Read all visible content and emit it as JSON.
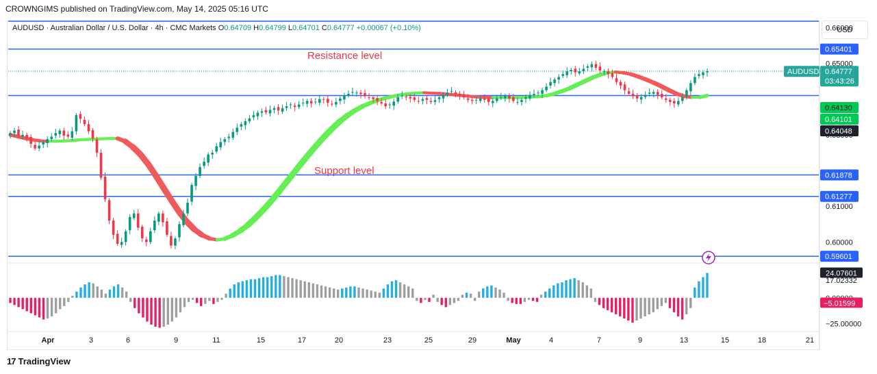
{
  "header": {
    "published": "CROWNGIMS published on TradingView.com, May 14, 2025 05:16 UTC",
    "symbol": "AUDUSD · Australian Dollar / U.S. Dollar · 4h · CMC Markets",
    "o_label": "O",
    "o_value": "0.64709",
    "h_label": "H",
    "h_value": "0.64799",
    "l_label": "L",
    "l_value": "0.64701",
    "c_label": "C",
    "c_value": "0.64777",
    "change": "+0.00067 (+0.10%)",
    "currency": "USD"
  },
  "annotations": {
    "resistance": "Resistance level",
    "support": "Support level"
  },
  "footer": {
    "brand": "TradingView",
    "brand_mark": "17"
  },
  "colors": {
    "up": "#089981",
    "down": "#f23645",
    "level": "#2962ff",
    "ma_up": "#66ee55",
    "ma_down": "#f05a5a",
    "osc_up": "#22aee0",
    "osc_down": "#e91e63",
    "osc_neutral": "#9e9e9e"
  },
  "chart_data": {
    "type": "candlestick",
    "timeframe": "4h",
    "ylim": [
      0.5945,
      0.662
    ],
    "y_ticks": [
      "0.66000",
      "0.65000",
      "0.63000",
      "0.61000",
      "0.60000"
    ],
    "y_tick_values": [
      0.66,
      0.65,
      0.63,
      0.61,
      0.6
    ],
    "x_labels": [
      "Apr",
      "3",
      "6",
      "9",
      "11",
      "15",
      "17",
      "20",
      "23",
      "25",
      "29",
      "May",
      "4",
      "7",
      "9",
      "13",
      "15",
      "18",
      "21"
    ],
    "levels": [
      {
        "value": 0.65401,
        "label": "0.65401"
      },
      {
        "value": 0.64101,
        "label": "0.64101"
      },
      {
        "value": 0.61878,
        "label": "0.61878"
      },
      {
        "value": 0.61277,
        "label": "0.61277"
      },
      {
        "value": 0.59601,
        "label": "0.59601"
      }
    ],
    "price_tags": [
      {
        "label": "AUDUSD",
        "value": "0.64777",
        "sub": "03:43:26"
      },
      {
        "value": "0.64130"
      },
      {
        "value": "0.64101"
      },
      {
        "value": "0.64048"
      }
    ],
    "close_series": [
      0.6305,
      0.6312,
      0.6298,
      0.63,
      0.6291,
      0.6275,
      0.6262,
      0.627,
      0.628,
      0.6288,
      0.6295,
      0.6305,
      0.6312,
      0.6298,
      0.6295,
      0.631,
      0.6355,
      0.6345,
      0.633,
      0.631,
      0.629,
      0.625,
      0.618,
      0.612,
      0.606,
      0.602,
      0.5995,
      0.6,
      0.603,
      0.607,
      0.608,
      0.604,
      0.601,
      0.6,
      0.603,
      0.606,
      0.608,
      0.6055,
      0.602,
      0.599,
      0.601,
      0.605,
      0.608,
      0.611,
      0.616,
      0.6185,
      0.621,
      0.6225,
      0.6245,
      0.625,
      0.6268,
      0.628,
      0.6288,
      0.6295,
      0.6308,
      0.632,
      0.633,
      0.6338,
      0.6346,
      0.6355,
      0.6362,
      0.6366,
      0.6363,
      0.637,
      0.6375,
      0.6368,
      0.6375,
      0.638,
      0.6385,
      0.6378,
      0.6385,
      0.639,
      0.6395,
      0.6388,
      0.6393,
      0.64,
      0.6398,
      0.639,
      0.6385,
      0.6392,
      0.6402,
      0.641,
      0.6415,
      0.642,
      0.6418,
      0.6414,
      0.6408,
      0.6405,
      0.64,
      0.6395,
      0.6388,
      0.638,
      0.6385,
      0.6393,
      0.6405,
      0.641,
      0.6406,
      0.6402,
      0.6398,
      0.6395,
      0.64,
      0.6398,
      0.6392,
      0.6397,
      0.6405,
      0.6412,
      0.6418,
      0.6422,
      0.6415,
      0.641,
      0.6405,
      0.6398,
      0.6395,
      0.6398,
      0.6402,
      0.6398,
      0.6392,
      0.6395,
      0.6402,
      0.6406,
      0.6409,
      0.6402,
      0.6395,
      0.6392,
      0.6398,
      0.6405,
      0.6412,
      0.6415,
      0.6418,
      0.6425,
      0.6435,
      0.6448,
      0.6455,
      0.6462,
      0.647,
      0.6478,
      0.6482,
      0.6475,
      0.6478,
      0.6485,
      0.6492,
      0.6498,
      0.6488,
      0.648,
      0.6478,
      0.647,
      0.6462,
      0.6448,
      0.6438,
      0.6425,
      0.6415,
      0.6408,
      0.6402,
      0.6406,
      0.6412,
      0.6418,
      0.642,
      0.6412,
      0.6405,
      0.6398,
      0.6392,
      0.6388,
      0.6395,
      0.6405,
      0.6425,
      0.6445,
      0.6462,
      0.647,
      0.6475,
      0.6478
    ],
    "ma_series": [
      0.63,
      0.6295,
      0.629,
      0.6286,
      0.6283,
      0.6282,
      0.6282,
      0.6283,
      0.6284,
      0.6286,
      0.6287,
      0.6288,
      0.6289,
      0.629,
      0.629,
      0.6282,
      0.6266,
      0.6245,
      0.6218,
      0.6186,
      0.6152,
      0.6118,
      0.6086,
      0.6058,
      0.6036,
      0.602,
      0.601,
      0.6006,
      0.6009,
      0.6018,
      0.6031,
      0.6047,
      0.6067,
      0.6089,
      0.6113,
      0.6139,
      0.6166,
      0.6193,
      0.622,
      0.6246,
      0.6271,
      0.6295,
      0.6317,
      0.6337,
      0.6354,
      0.6368,
      0.638,
      0.6389,
      0.6397,
      0.6403,
      0.6408,
      0.6412,
      0.6415,
      0.6417,
      0.6418,
      0.6417,
      0.6416,
      0.6414,
      0.6412,
      0.641,
      0.6408,
      0.6406,
      0.6405,
      0.6404,
      0.6404,
      0.6404,
      0.6404,
      0.6405,
      0.6406,
      0.6407,
      0.641,
      0.6415,
      0.6422,
      0.643,
      0.644,
      0.645,
      0.646,
      0.6468,
      0.6474,
      0.6476,
      0.6474,
      0.647,
      0.6463,
      0.6455,
      0.6446,
      0.6436,
      0.6425,
      0.6415,
      0.6408,
      0.6405,
      0.6405,
      0.641
    ],
    "oscillator": {
      "y_ticks": [
        "24.07601",
        "17.02332",
        "0.00000",
        "−5.01599",
        "−25.00000"
      ],
      "y_tick_values": [
        24.07601,
        17.02332,
        0,
        -5.01599,
        -25
      ],
      "ylim": [
        -30,
        31
      ],
      "values": [
        -5,
        -7,
        -9,
        -11,
        -13,
        -15,
        -17,
        -19,
        -21,
        -20,
        -18,
        -15,
        -11,
        -8,
        -4,
        2,
        6,
        10,
        13,
        15,
        14,
        11,
        8,
        4,
        8,
        11,
        13,
        10,
        6,
        -4,
        -10,
        -15,
        -19,
        -23,
        -26,
        -28,
        -29,
        -28,
        -26,
        -23,
        -19,
        -14,
        -9,
        -4,
        -2,
        -5,
        -8,
        -6,
        -3,
        -6,
        -4,
        -2,
        4,
        9,
        13,
        15,
        16,
        17,
        18,
        18,
        19,
        20,
        20,
        21,
        22,
        22,
        21,
        20,
        19,
        18,
        17,
        16,
        15,
        14,
        13,
        12,
        11,
        10,
        9,
        8,
        9,
        10,
        11,
        11,
        10,
        9,
        8,
        7,
        6,
        5,
        9,
        13,
        16,
        17,
        15,
        13,
        11,
        9,
        -3,
        -5,
        -2,
        -4,
        3,
        -4,
        -7,
        -9,
        -7,
        -5,
        -3,
        3,
        5,
        4,
        -3,
        6,
        9,
        11,
        12,
        10,
        8,
        5,
        -3,
        -5,
        -6,
        -6,
        -4,
        -2,
        -3,
        -4,
        3,
        6,
        9,
        12,
        14,
        15,
        17,
        18,
        19,
        17,
        15,
        12,
        9,
        -4,
        -7,
        -10,
        -12,
        -14,
        -16,
        -18,
        -20,
        -22,
        -24,
        -22,
        -20,
        -18,
        -16,
        -14,
        -11,
        -8,
        -5,
        -10,
        -14,
        -18,
        -21,
        -16,
        -10,
        10,
        16,
        20,
        24
      ]
    }
  }
}
